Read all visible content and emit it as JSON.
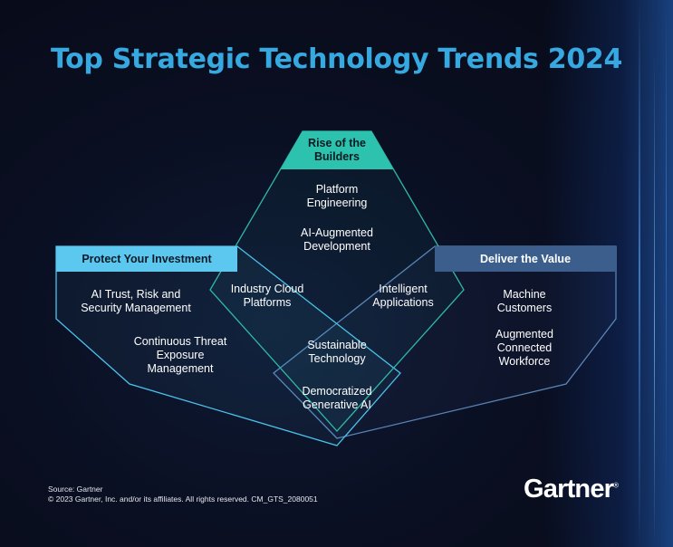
{
  "title": "Top Strategic Technology Trends 2024",
  "themes": {
    "builders": {
      "header": "Rise of the Builders",
      "trends": [
        "Platform Engineering",
        "AI-Augmented Development"
      ]
    },
    "protect": {
      "header": "Protect Your Investment",
      "trends": [
        "AI Trust, Risk and Security Management",
        "Continuous Threat Exposure Management"
      ]
    },
    "deliver": {
      "header": "Deliver the Value",
      "trends": [
        "Machine Customers",
        "Augmented Connected Workforce"
      ]
    }
  },
  "overlaps": {
    "protect_builders": "Industry Cloud Platforms",
    "builders_deliver": "Intelligent Applications",
    "center": [
      "Sustainable Technology",
      "Democratized Generative AI"
    ]
  },
  "colors": {
    "title": "#36a9e1",
    "builders_header_bg": "#2cc2ae",
    "protect_header_bg": "#5cc8f0",
    "deliver_header_bg": "#3b5e8c",
    "outline_teal": "#2fb8a8",
    "outline_cyan": "#4cc3ec",
    "outline_slate": "#5a84b8"
  },
  "footer": {
    "source": "Source: Gartner",
    "copyright": "© 2023 Gartner, Inc. and/or its affiliates. All rights reserved. CM_GTS_2080051",
    "logo": "Gartner",
    "logo_mark": "®"
  }
}
